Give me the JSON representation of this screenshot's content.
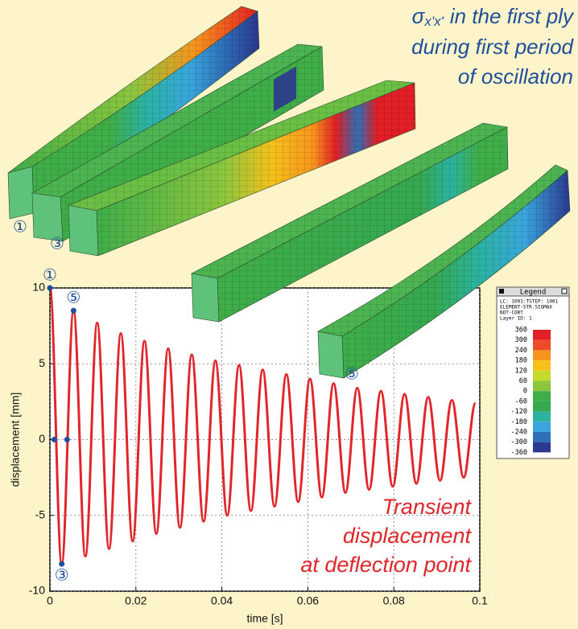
{
  "title": {
    "symbol": "σ",
    "subscript": "x'x'",
    "lines": [
      "in the first ply",
      "during first period",
      "of oscillation"
    ]
  },
  "beam_labels": [
    "①",
    "③",
    "⑤"
  ],
  "legend": {
    "title": "Legend",
    "header": [
      "LC: 1001:TSTEP: 1001",
      "ELEMENT-STR.SIGMAX",
      "NOT-CORT",
      "Layer ID: 1"
    ],
    "levels": [
      360,
      300,
      240,
      180,
      120,
      60,
      0,
      -60,
      -120,
      -180,
      -240,
      -300,
      -360
    ],
    "colors": [
      "#e21f26",
      "#ef4b27",
      "#f7941d",
      "#f6c11a",
      "#c5d92e",
      "#8cc63f",
      "#3fae49",
      "#36a84f",
      "#2bb3a0",
      "#3aa6dd",
      "#2e6fb7",
      "#2b3990"
    ]
  },
  "chart_data": {
    "type": "line",
    "xlabel": "time [s]",
    "ylabel": "displacement [mm]",
    "annotation": [
      "Transient",
      "displacement",
      "at deflection point"
    ],
    "x": [
      0,
      0.00275,
      0.0055,
      0.00825,
      0.011,
      0.01375,
      0.0165,
      0.01925,
      0.022,
      0.02475,
      0.0275,
      0.03025,
      0.033,
      0.03575,
      0.0385,
      0.04125,
      0.044,
      0.04675,
      0.0495,
      0.05225,
      0.055,
      0.05775,
      0.0605,
      0.06325,
      0.066,
      0.06875,
      0.0715,
      0.07425,
      0.077,
      0.07975,
      0.0825,
      0.08525,
      0.088,
      0.09075,
      0.0935,
      0.09625,
      0.099
    ],
    "series": [
      {
        "color": "#e0262a",
        "values": [
          10,
          -8.2,
          8.5,
          -7.7,
          7.7,
          -7.2,
          7.0,
          -6.7,
          6.5,
          -6.2,
          6.0,
          -5.8,
          5.6,
          -5.4,
          5.2,
          -5.0,
          4.9,
          -4.7,
          4.6,
          -4.4,
          4.3,
          -4.1,
          4.0,
          -3.8,
          3.7,
          -3.5,
          3.4,
          -3.3,
          3.2,
          -3.1,
          3.0,
          -2.9,
          2.8,
          -2.7,
          2.6,
          -2.5,
          2.4
        ]
      }
    ],
    "markers": [
      {
        "x": 0,
        "y": 10,
        "label": "①"
      },
      {
        "x": 0.0055,
        "y": 8.5,
        "label": "⑤"
      },
      {
        "x": 0.00275,
        "y": -8.2,
        "label": "③"
      },
      {
        "x": 0.001,
        "y": 0
      },
      {
        "x": 0.004,
        "y": 0
      }
    ],
    "marker_color": "#1f4e9c",
    "xlim": [
      0,
      0.1
    ],
    "ylim": [
      -10,
      10
    ],
    "xticks": [
      0,
      0.02,
      0.04,
      0.06,
      0.08,
      0.1
    ],
    "yticks": [
      -10,
      -5,
      0,
      5,
      10
    ],
    "grid": true
  }
}
